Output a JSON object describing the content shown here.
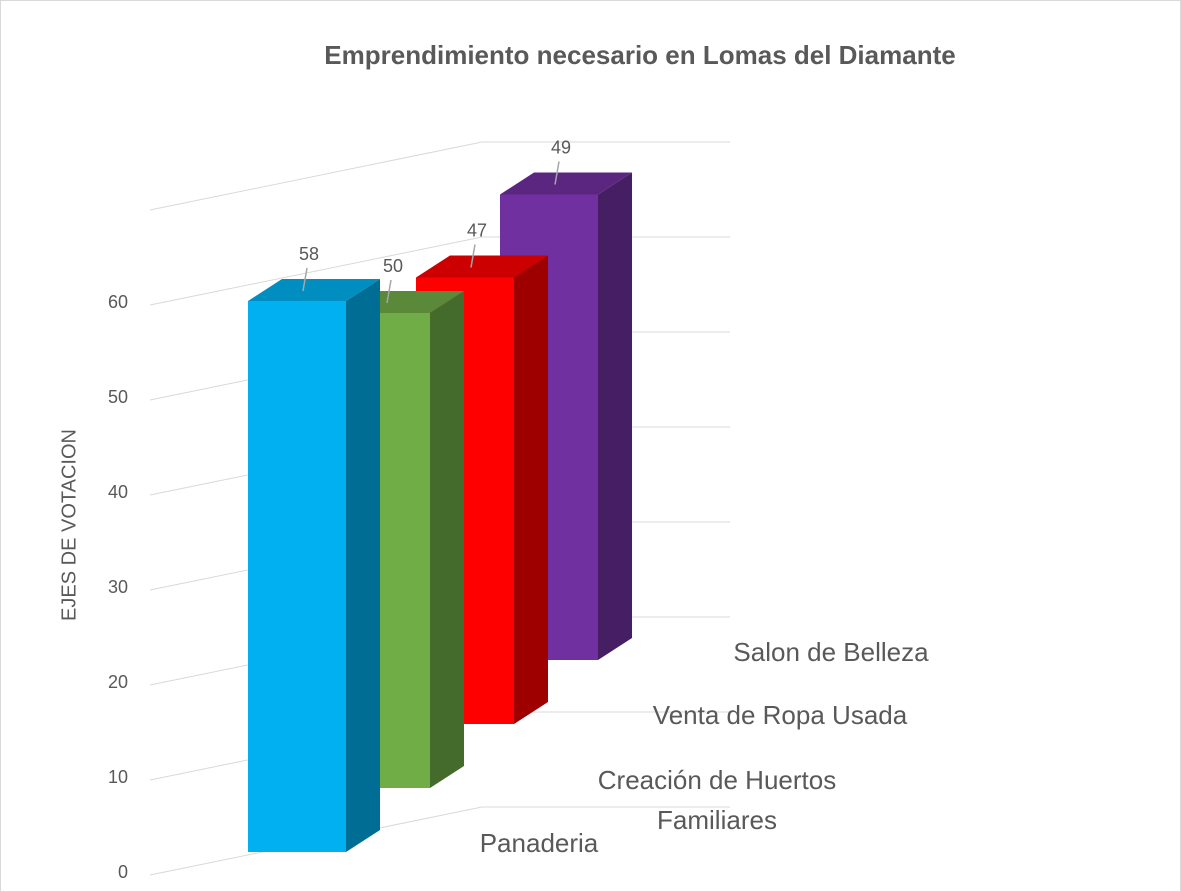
{
  "chart_data": {
    "type": "bar3d",
    "title": "Emprendimiento necesario en Lomas del Diamante",
    "y_label": "EJES DE VOTACION",
    "categories": [
      "Panaderia",
      "Creación de Huertos Familiares",
      "Venta de Ropa Usada",
      "Salon de Belleza"
    ],
    "values": [
      58,
      50,
      47,
      49
    ],
    "colors": [
      "#00b0f0",
      "#70ad47",
      "#ff0000",
      "#7030a0"
    ],
    "ylim": [
      0,
      70
    ],
    "yticks": [
      0,
      10,
      20,
      30,
      40,
      50,
      60
    ],
    "grid": true
  }
}
